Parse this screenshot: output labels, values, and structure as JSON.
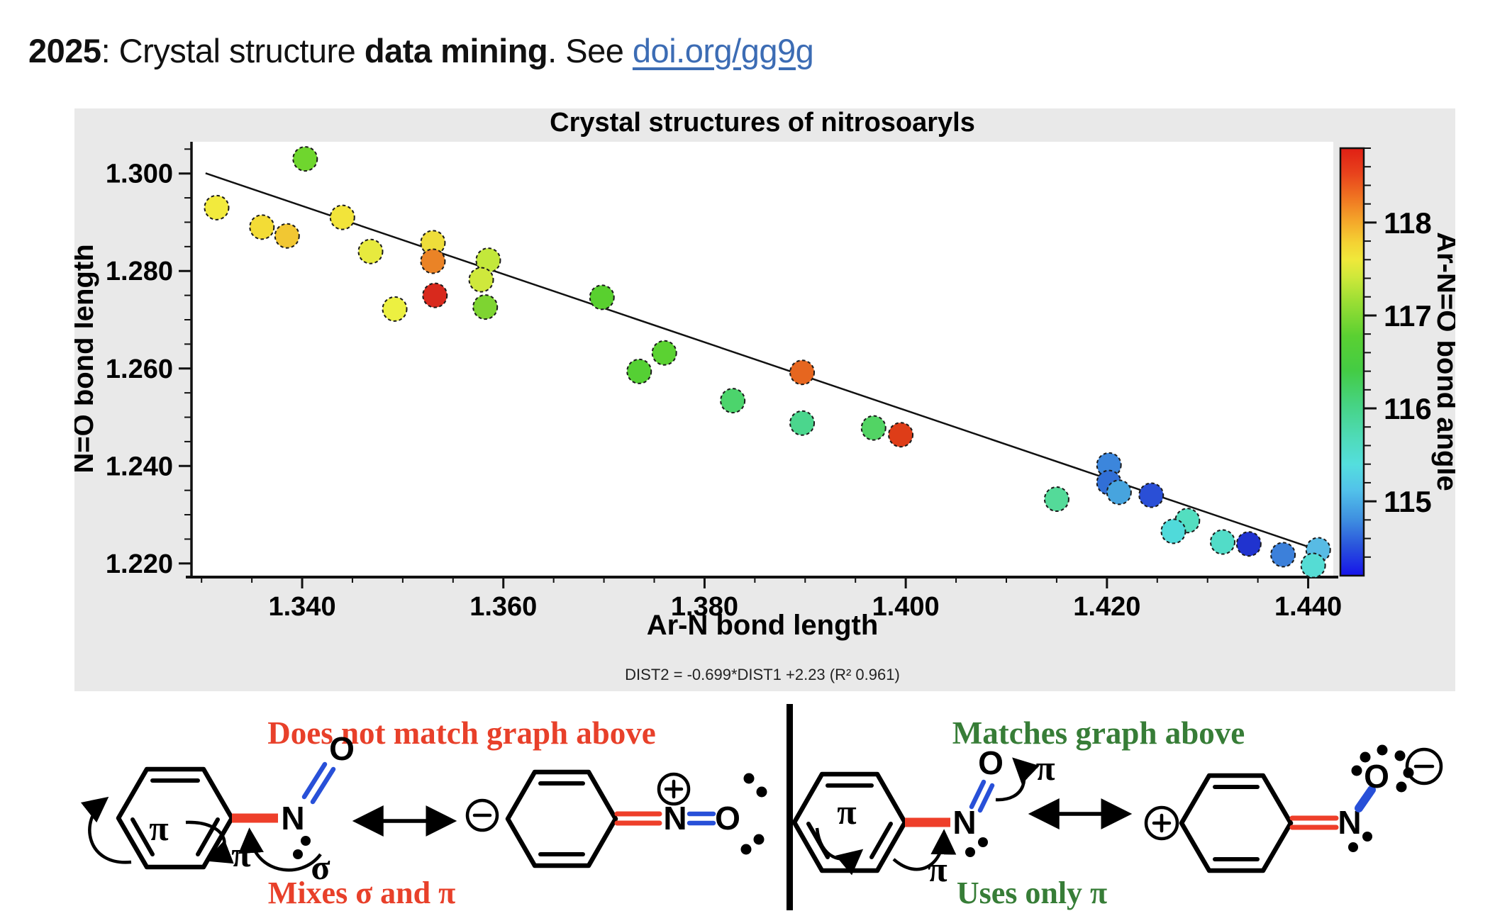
{
  "header": {
    "prefix_bold": "2025",
    "middle": ": Crystal structure ",
    "bold_phrase": "data mining",
    "suffix": ". See ",
    "link_text": "doi.org/gg9g",
    "link_color": "#3c6cb4"
  },
  "chart_data": {
    "type": "scatter",
    "title": "Crystal structures of nitrosoaryls",
    "xlabel": "Ar-N bond length",
    "ylabel": "N=O bond length",
    "equation": "DIST2 = -0.699*DIST1 +2.23 (R² 0.961)",
    "xlim": [
      1.329,
      1.4425
    ],
    "ylim": [
      1.2175,
      1.3065
    ],
    "xticks": [
      1.34,
      1.36,
      1.38,
      1.4,
      1.42,
      1.44
    ],
    "xtick_labels": [
      "1.340",
      "1.360",
      "1.380",
      "1.400",
      "1.420",
      "1.440"
    ],
    "yticks": [
      1.3,
      1.28,
      1.26,
      1.24,
      1.22
    ],
    "ytick_labels": [
      "1.300",
      "1.280",
      "1.260",
      "1.240",
      "1.220"
    ],
    "minor_step": 0.005,
    "grid": false,
    "legend_position": "none",
    "fit_line": {
      "slope": -0.699,
      "intercept": 2.23,
      "r2": 0.961
    },
    "colorbar": {
      "label": "Ar-N=O bond angle",
      "range": [
        114.2,
        118.8
      ],
      "ticks": [
        118,
        117,
        116,
        115
      ],
      "minor_step": 0.2,
      "gradient": [
        [
          0.0,
          "#e01f15"
        ],
        [
          0.06,
          "#e8431c"
        ],
        [
          0.12,
          "#f07822"
        ],
        [
          0.17,
          "#f4a62a"
        ],
        [
          0.22,
          "#f4d133"
        ],
        [
          0.26,
          "#f0e83a"
        ],
        [
          0.3,
          "#d0e83a"
        ],
        [
          0.36,
          "#9ade34"
        ],
        [
          0.44,
          "#5ad032"
        ],
        [
          0.52,
          "#44cc44"
        ],
        [
          0.6,
          "#46d383"
        ],
        [
          0.68,
          "#4fdbba"
        ],
        [
          0.74,
          "#54dede"
        ],
        [
          0.8,
          "#52c2ea"
        ],
        [
          0.87,
          "#3e8ee0"
        ],
        [
          0.93,
          "#2a55dc"
        ],
        [
          1.0,
          "#1613ea"
        ]
      ]
    },
    "points": [
      {
        "x": 1.3403,
        "y": 1.303,
        "color": "#6fd62e"
      },
      {
        "x": 1.3315,
        "y": 1.293,
        "color": "#f2ea3d"
      },
      {
        "x": 1.336,
        "y": 1.289,
        "color": "#f3dc36"
      },
      {
        "x": 1.3385,
        "y": 1.2872,
        "color": "#f1c733"
      },
      {
        "x": 1.344,
        "y": 1.291,
        "color": "#f2e43a"
      },
      {
        "x": 1.3468,
        "y": 1.284,
        "color": "#e7ea3e"
      },
      {
        "x": 1.353,
        "y": 1.2858,
        "color": "#eedd3a"
      },
      {
        "x": 1.353,
        "y": 1.282,
        "color": "#ea8326"
      },
      {
        "x": 1.3492,
        "y": 1.2722,
        "color": "#ecf041"
      },
      {
        "x": 1.3532,
        "y": 1.275,
        "color": "#d8291d"
      },
      {
        "x": 1.3585,
        "y": 1.2822,
        "color": "#c3e83b"
      },
      {
        "x": 1.3578,
        "y": 1.2782,
        "color": "#cfe83c"
      },
      {
        "x": 1.3582,
        "y": 1.2726,
        "color": "#7ed431"
      },
      {
        "x": 1.3698,
        "y": 1.2746,
        "color": "#59d02f"
      },
      {
        "x": 1.3735,
        "y": 1.2594,
        "color": "#55d034"
      },
      {
        "x": 1.376,
        "y": 1.2632,
        "color": "#5bd232"
      },
      {
        "x": 1.3828,
        "y": 1.2534,
        "color": "#4cd46c"
      },
      {
        "x": 1.3897,
        "y": 1.2592,
        "color": "#e6661f"
      },
      {
        "x": 1.3897,
        "y": 1.2488,
        "color": "#4bd68d"
      },
      {
        "x": 1.3968,
        "y": 1.2478,
        "color": "#52d464"
      },
      {
        "x": 1.3995,
        "y": 1.2464,
        "color": "#de3d18"
      },
      {
        "x": 1.415,
        "y": 1.2332,
        "color": "#54da99"
      },
      {
        "x": 1.4202,
        "y": 1.2402,
        "color": "#3c86dc"
      },
      {
        "x": 1.4202,
        "y": 1.2366,
        "color": "#316fd6"
      },
      {
        "x": 1.4212,
        "y": 1.2346,
        "color": "#47a4de"
      },
      {
        "x": 1.4244,
        "y": 1.234,
        "color": "#2a4fd6"
      },
      {
        "x": 1.428,
        "y": 1.2288,
        "color": "#53dec0"
      },
      {
        "x": 1.4266,
        "y": 1.2266,
        "color": "#50dada"
      },
      {
        "x": 1.4315,
        "y": 1.2244,
        "color": "#52dcc8"
      },
      {
        "x": 1.4341,
        "y": 1.224,
        "color": "#2033cf"
      },
      {
        "x": 1.4375,
        "y": 1.2218,
        "color": "#3c80da"
      },
      {
        "x": 1.441,
        "y": 1.2228,
        "color": "#58bbe4"
      },
      {
        "x": 1.4405,
        "y": 1.2196,
        "color": "#55dcd4"
      }
    ]
  },
  "panels": {
    "left": {
      "heading": "Does not match graph above",
      "caption": "Mixes σ and π",
      "accent": "#e8402a"
    },
    "right": {
      "heading": "Matches graph above",
      "caption": "Uses only π",
      "accent": "#377d37"
    }
  },
  "labels": {
    "pi": "π",
    "sigma": "σ",
    "nitrogen": "N",
    "oxygen": "O"
  },
  "accents": {
    "red_bond": "#ee3f2a",
    "blue_bond": "#2850d8",
    "panel_bg": "#e9e9e9"
  }
}
